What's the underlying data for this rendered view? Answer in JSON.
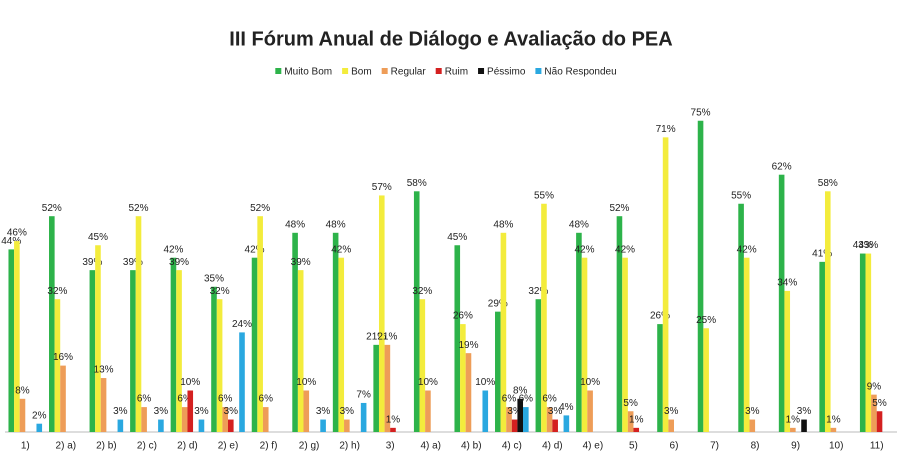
{
  "chart_data": {
    "type": "bar",
    "title": "III Fórum Anual de Diálogo e Avaliação do PEA",
    "categories": [
      "1)",
      "2) a)",
      "2) b)",
      "2) c)",
      "2) d)",
      "2) e)",
      "2) f)",
      "2) g)",
      "2) h)",
      "3)",
      "4) a)",
      "4) b)",
      "4) c)",
      "4) d)",
      "4) e)",
      "5)",
      "6)",
      "7)",
      "8)",
      "9)",
      "10)",
      "11)"
    ],
    "ylim": [
      0,
      80
    ],
    "series": [
      {
        "name": "Muito Bom",
        "color": "#2db34a",
        "values": [
          44,
          52,
          39,
          39,
          42,
          35,
          42,
          48,
          48,
          21,
          58,
          45,
          29,
          32,
          48,
          52,
          26,
          75,
          55,
          62,
          41,
          43
        ],
        "value_labels": [
          "44%",
          "52%",
          "39%",
          "39%",
          "42%",
          "35%",
          "42%",
          "48%",
          "48%",
          "21%",
          "58%",
          "45%",
          "29%",
          "32%",
          "48%",
          "52%",
          "26%",
          "75%",
          "55%",
          "62%",
          "41%",
          "43%"
        ]
      },
      {
        "name": "Bom",
        "color": "#f3ec3c",
        "values": [
          46,
          32,
          45,
          52,
          39,
          32,
          52,
          39,
          42,
          57,
          32,
          26,
          48,
          55,
          42,
          42,
          71,
          25,
          42,
          34,
          58,
          43
        ],
        "value_labels": [
          "46%",
          "32%",
          "45%",
          "52%",
          "39%",
          "32%",
          "52%",
          "39%",
          "42%",
          "57%",
          "32%",
          "26%",
          "48%",
          "55%",
          "42%",
          "42%",
          "71%",
          "25%",
          "42%",
          "34%",
          "58%",
          "43%"
        ]
      },
      {
        "name": "Regular",
        "color": "#ee9d58",
        "values": [
          8,
          16,
          13,
          6,
          6,
          6,
          6,
          10,
          3,
          21,
          10,
          19,
          6,
          6,
          10,
          5,
          3,
          null,
          3,
          1,
          1,
          9
        ],
        "value_labels": [
          "8%",
          "16%",
          "13%",
          "6%",
          "6%",
          "6%",
          "6%",
          "10%",
          "3%",
          "21%",
          "10%",
          "19%",
          "6%",
          "6%",
          "10%",
          "5%",
          "3%",
          null,
          "3%",
          "1%",
          "1%",
          "9%"
        ]
      },
      {
        "name": "Ruim",
        "color": "#d42020",
        "values": [
          null,
          null,
          null,
          null,
          10,
          3,
          null,
          null,
          null,
          1,
          null,
          null,
          3,
          3,
          null,
          1,
          null,
          null,
          null,
          null,
          null,
          5
        ],
        "value_labels": [
          null,
          null,
          null,
          null,
          "10%",
          "3%",
          null,
          null,
          null,
          "1%",
          null,
          null,
          "3%",
          "3%",
          null,
          "1%",
          null,
          null,
          null,
          null,
          null,
          "5%"
        ]
      },
      {
        "name": "Péssimo",
        "color": "#111111",
        "values": [
          null,
          null,
          null,
          null,
          null,
          null,
          null,
          null,
          null,
          null,
          null,
          null,
          8,
          null,
          null,
          null,
          null,
          null,
          null,
          3,
          null,
          null
        ],
        "value_labels": [
          null,
          null,
          null,
          null,
          null,
          null,
          null,
          null,
          null,
          null,
          null,
          null,
          "8%",
          null,
          null,
          null,
          null,
          null,
          null,
          "3%",
          null,
          null
        ]
      },
      {
        "name": "Não Respondeu",
        "color": "#2aa8e0",
        "values": [
          2,
          null,
          3,
          3,
          3,
          24,
          null,
          3,
          7,
          null,
          null,
          10,
          6,
          4,
          null,
          null,
          null,
          null,
          null,
          null,
          null,
          null
        ],
        "value_labels": [
          "2%",
          null,
          "3%",
          "3%",
          "3%",
          "24%",
          null,
          "3%",
          "7%",
          null,
          null,
          "10%",
          "6%",
          "4%",
          null,
          null,
          null,
          null,
          null,
          null,
          null,
          null
        ]
      }
    ]
  }
}
